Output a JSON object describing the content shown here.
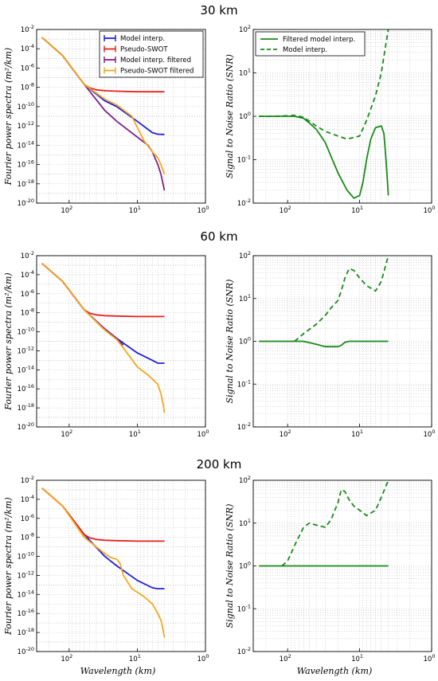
{
  "figure": {
    "row_titles": [
      "30 km",
      "60 km",
      "200 km"
    ],
    "left_ylabel": "Fourier power spectra (m²/km)",
    "right_ylabel": "Signal to Noise Ratio (SNR)",
    "xlabel": "Wavelength (km)"
  },
  "colors": {
    "model_interp": "#1f1fdc",
    "pseudo_swot": "#e8201e",
    "model_interp_filtered": "#80208a",
    "pseudo_swot_filtered": "#f4a81c",
    "snr": "#1a8a1a",
    "grid": "#b0b0b0"
  },
  "chart_data": [
    {
      "type": "line",
      "panel": "30 km spectra",
      "x_unit": "wavelength km",
      "xscale": "log",
      "yscale": "log",
      "xlim": [
        300,
        1
      ],
      "ylim": [
        1e-20,
        0.01
      ],
      "xticks": [
        {
          "m": "10",
          "e": "2"
        },
        {
          "m": "10",
          "e": "1"
        },
        {
          "m": "10",
          "e": "0"
        }
      ],
      "yticks": [
        {
          "m": "10",
          "e": "-20"
        },
        {
          "m": "10",
          "e": "-18"
        },
        {
          "m": "10",
          "e": "-16"
        },
        {
          "m": "10",
          "e": "-14"
        },
        {
          "m": "10",
          "e": "-12"
        },
        {
          "m": "10",
          "e": "-10"
        },
        {
          "m": "10",
          "e": "-8"
        },
        {
          "m": "10",
          "e": "-6"
        },
        {
          "m": "10",
          "e": "-4"
        },
        {
          "m": "10",
          "e": "-2"
        }
      ],
      "legend": {
        "placement": "top-right",
        "entries": [
          "Model interp.",
          "Pseudo-SWOT",
          "Model interp. filtered",
          "Pseudo-SWOT filtered"
        ]
      },
      "series": [
        {
          "name": "Model interp.",
          "color_key": "model_interp",
          "x": [
            250,
            125,
            60,
            30,
            20,
            10,
            6,
            5,
            4
          ],
          "y": [
            0.0015,
            2e-05,
            2e-08,
            4e-10,
            1e-10,
            3e-12,
            2e-13,
            1.4e-13,
            1.3e-13
          ]
        },
        {
          "name": "Pseudo-SWOT",
          "color_key": "pseudo_swot",
          "x": [
            250,
            125,
            60,
            50,
            40,
            30,
            20,
            10,
            4
          ],
          "y": [
            0.0015,
            2e-05,
            2e-08,
            9e-09,
            5.5e-09,
            4.5e-09,
            4e-09,
            3.5e-09,
            3.5e-09
          ]
        },
        {
          "name": "Model interp. filtered",
          "color_key": "model_interp_filtered",
          "x": [
            250,
            125,
            60,
            30,
            20,
            10,
            7,
            6,
            5,
            4.5,
            4
          ],
          "y": [
            0.0015,
            2e-05,
            2e-08,
            4e-11,
            3e-12,
            7e-14,
            1e-14,
            2e-15,
            1e-16,
            1e-17,
            2e-19
          ]
        },
        {
          "name": "Pseudo-SWOT filtered",
          "color_key": "pseudo_swot_filtered",
          "x": [
            250,
            125,
            60,
            30,
            20,
            12,
            8,
            6,
            5,
            4.5,
            4
          ],
          "y": [
            0.0015,
            2e-05,
            2e-08,
            6e-10,
            1.5e-10,
            1e-11,
            3e-14,
            2e-15,
            5e-16,
            1e-16,
            1e-17
          ]
        }
      ]
    },
    {
      "type": "line",
      "panel": "30 km SNR",
      "x_unit": "wavelength km",
      "xscale": "log",
      "yscale": "log",
      "xlim": [
        300,
        1
      ],
      "ylim": [
        0.01,
        100
      ],
      "xticks": [
        {
          "m": "10",
          "e": "2"
        },
        {
          "m": "10",
          "e": "1"
        },
        {
          "m": "10",
          "e": "0"
        }
      ],
      "yticks": [
        {
          "m": "10",
          "e": "-2"
        },
        {
          "m": "10",
          "e": "-1"
        },
        {
          "m": "10",
          "e": "0"
        },
        {
          "m": "10",
          "e": "1"
        },
        {
          "m": "10",
          "e": "2"
        }
      ],
      "legend": {
        "placement": "top-left",
        "entries": [
          "Filtered model interp.",
          "Model interp."
        ]
      },
      "series": [
        {
          "name": "Filtered model interp.",
          "color_key": "snr",
          "dash": false,
          "x": [
            250,
            150,
            80,
            60,
            50,
            40,
            30,
            25,
            20,
            15,
            12,
            10,
            9,
            8,
            7,
            6,
            5,
            4.6,
            4.3,
            4.1,
            4
          ],
          "y": [
            1,
            1,
            1,
            0.9,
            0.7,
            0.5,
            0.25,
            0.12,
            0.05,
            0.02,
            0.013,
            0.015,
            0.03,
            0.1,
            0.3,
            0.55,
            0.6,
            0.4,
            0.1,
            0.03,
            0.015
          ]
        },
        {
          "name": "Model interp.",
          "color_key": "snr",
          "dash": true,
          "x": [
            250,
            150,
            80,
            60,
            40,
            30,
            20,
            15,
            10,
            8,
            6,
            5,
            4.5,
            4
          ],
          "y": [
            1,
            1,
            1.05,
            0.95,
            0.6,
            0.45,
            0.35,
            0.3,
            0.35,
            0.8,
            3,
            10,
            30,
            100
          ]
        }
      ]
    },
    {
      "type": "line",
      "panel": "60 km spectra",
      "x_unit": "wavelength km",
      "xscale": "log",
      "yscale": "log",
      "xlim": [
        300,
        1
      ],
      "ylim": [
        1e-20,
        0.01
      ],
      "xticks": [
        {
          "m": "10",
          "e": "2"
        },
        {
          "m": "10",
          "e": "1"
        },
        {
          "m": "10",
          "e": "0"
        }
      ],
      "yticks": [
        {
          "m": "10",
          "e": "-20"
        },
        {
          "m": "10",
          "e": "-18"
        },
        {
          "m": "10",
          "e": "-16"
        },
        {
          "m": "10",
          "e": "-14"
        },
        {
          "m": "10",
          "e": "-12"
        },
        {
          "m": "10",
          "e": "-10"
        },
        {
          "m": "10",
          "e": "-8"
        },
        {
          "m": "10",
          "e": "-6"
        },
        {
          "m": "10",
          "e": "-4"
        },
        {
          "m": "10",
          "e": "-2"
        }
      ],
      "series": [
        {
          "name": "Model interp.",
          "color_key": "model_interp",
          "x": [
            250,
            125,
            60,
            30,
            20,
            10,
            6,
            5,
            4
          ],
          "y": [
            0.0015,
            2e-05,
            2e-08,
            2e-10,
            2e-11,
            6e-13,
            1e-13,
            5e-14,
            5e-14
          ]
        },
        {
          "name": "Pseudo-SWOT",
          "color_key": "pseudo_swot",
          "x": [
            250,
            125,
            60,
            50,
            40,
            30,
            20,
            10,
            4
          ],
          "y": [
            0.0015,
            2e-05,
            2e-08,
            9e-09,
            6e-09,
            5e-09,
            4.5e-09,
            4e-09,
            4e-09
          ]
        },
        {
          "name": "Model interp. filtered",
          "color_key": "model_interp_filtered",
          "x": [
            250,
            125,
            60,
            30,
            20,
            18,
            16
          ],
          "y": [
            0.0015,
            2e-05,
            2e-08,
            2e-10,
            2e-11,
            8e-12,
            4e-12
          ]
        },
        {
          "name": "Pseudo-SWOT filtered",
          "color_key": "pseudo_swot_filtered",
          "x": [
            250,
            125,
            60,
            30,
            20,
            16,
            10,
            7,
            5,
            4.5,
            4.2,
            4
          ],
          "y": [
            0.0015,
            2e-05,
            2e-08,
            1.5e-10,
            1.5e-11,
            2e-12,
            2e-14,
            3e-15,
            3e-16,
            3e-17,
            3e-18,
            3e-19
          ]
        }
      ]
    },
    {
      "type": "line",
      "panel": "60 km SNR",
      "x_unit": "wavelength km",
      "xscale": "log",
      "yscale": "log",
      "xlim": [
        300,
        1
      ],
      "ylim": [
        0.01,
        100
      ],
      "xticks": [
        {
          "m": "10",
          "e": "2"
        },
        {
          "m": "10",
          "e": "1"
        },
        {
          "m": "10",
          "e": "0"
        }
      ],
      "yticks": [
        {
          "m": "10",
          "e": "-2"
        },
        {
          "m": "10",
          "e": "-1"
        },
        {
          "m": "10",
          "e": "0"
        },
        {
          "m": "10",
          "e": "1"
        },
        {
          "m": "10",
          "e": "2"
        }
      ],
      "series": [
        {
          "name": "Filtered model interp.",
          "color_key": "snr",
          "dash": false,
          "x": [
            250,
            100,
            60,
            40,
            30,
            25,
            20,
            18,
            16,
            14,
            12,
            4
          ],
          "y": [
            1,
            1,
            1,
            0.85,
            0.75,
            0.75,
            0.75,
            0.8,
            0.95,
            1,
            1,
            1
          ]
        },
        {
          "name": "Model interp.",
          "color_key": "snr",
          "dash": true,
          "x": [
            80,
            60,
            40,
            30,
            25,
            20,
            18,
            16,
            14,
            12,
            10,
            8,
            6,
            5,
            4
          ],
          "y": [
            1,
            1.5,
            2.5,
            4,
            6,
            9,
            15,
            30,
            50,
            45,
            30,
            20,
            15,
            25,
            100
          ]
        }
      ]
    },
    {
      "type": "line",
      "panel": "200 km spectra",
      "x_unit": "wavelength km",
      "xscale": "log",
      "yscale": "log",
      "xlim": [
        300,
        1
      ],
      "ylim": [
        1e-20,
        0.01
      ],
      "xticks": [
        {
          "m": "10",
          "e": "2"
        },
        {
          "m": "10",
          "e": "1"
        },
        {
          "m": "10",
          "e": "0"
        }
      ],
      "yticks": [
        {
          "m": "10",
          "e": "-20"
        },
        {
          "m": "10",
          "e": "-18"
        },
        {
          "m": "10",
          "e": "-16"
        },
        {
          "m": "10",
          "e": "-14"
        },
        {
          "m": "10",
          "e": "-12"
        },
        {
          "m": "10",
          "e": "-10"
        },
        {
          "m": "10",
          "e": "-8"
        },
        {
          "m": "10",
          "e": "-6"
        },
        {
          "m": "10",
          "e": "-4"
        },
        {
          "m": "10",
          "e": "-2"
        }
      ],
      "series": [
        {
          "name": "Model interp.",
          "color_key": "model_interp",
          "x": [
            250,
            125,
            60,
            30,
            20,
            10,
            6,
            5,
            4
          ],
          "y": [
            0.0015,
            2e-05,
            2e-08,
            1e-10,
            1e-11,
            3e-13,
            5e-14,
            4e-14,
            4e-14
          ]
        },
        {
          "name": "Pseudo-SWOT",
          "color_key": "pseudo_swot",
          "x": [
            250,
            125,
            60,
            50,
            40,
            30,
            20,
            10,
            4
          ],
          "y": [
            0.0015,
            2e-05,
            2e-08,
            9e-09,
            6e-09,
            5e-09,
            4.5e-09,
            4e-09,
            4e-09
          ]
        },
        {
          "name": "Pseudo-SWOT filtered",
          "color_key": "pseudo_swot_filtered",
          "x": [
            250,
            125,
            60,
            40,
            30,
            25,
            20,
            18,
            16,
            12,
            8,
            6,
            5,
            4.5,
            4.2,
            4
          ],
          "y": [
            0.0015,
            2e-05,
            1e-08,
            1e-09,
            2e-10,
            8e-11,
            5e-11,
            2e-11,
            1e-12,
            4e-14,
            6e-15,
            1e-15,
            1e-16,
            2e-17,
            2e-18,
            3e-19
          ]
        }
      ]
    },
    {
      "type": "line",
      "panel": "200 km SNR",
      "x_unit": "wavelength km",
      "xscale": "log",
      "yscale": "log",
      "xlim": [
        300,
        1
      ],
      "ylim": [
        0.01,
        100
      ],
      "xticks": [
        {
          "m": "10",
          "e": "2"
        },
        {
          "m": "10",
          "e": "1"
        },
        {
          "m": "10",
          "e": "0"
        }
      ],
      "yticks": [
        {
          "m": "10",
          "e": "-2"
        },
        {
          "m": "10",
          "e": "-1"
        },
        {
          "m": "10",
          "e": "0"
        },
        {
          "m": "10",
          "e": "1"
        },
        {
          "m": "10",
          "e": "2"
        }
      ],
      "series": [
        {
          "name": "Filtered model interp.",
          "color_key": "snr",
          "dash": false,
          "x": [
            250,
            100,
            60,
            20,
            4
          ],
          "y": [
            1,
            1,
            1,
            1,
            1
          ]
        },
        {
          "name": "Model interp.",
          "color_key": "snr",
          "dash": true,
          "x": [
            120,
            100,
            80,
            60,
            50,
            40,
            30,
            25,
            20,
            18,
            16,
            14,
            12,
            10,
            8,
            6,
            5,
            4
          ],
          "y": [
            1,
            1.3,
            3,
            8,
            10,
            9,
            8,
            12,
            30,
            60,
            55,
            35,
            25,
            20,
            15,
            20,
            40,
            100
          ]
        }
      ]
    }
  ]
}
